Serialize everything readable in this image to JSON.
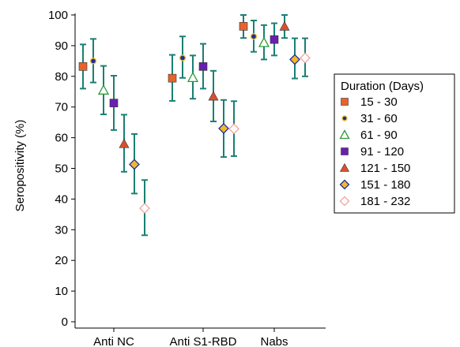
{
  "chart_data": {
    "type": "scatter",
    "subtype": "dot-plot-with-error-bars",
    "ylabel": "Seropositivity (%)",
    "xlabel": "",
    "ylim": [
      0,
      100
    ],
    "yticks": [
      0,
      10,
      20,
      30,
      40,
      50,
      60,
      70,
      80,
      90,
      100
    ],
    "categories": [
      "Anti NC",
      "Anti S1-RBD",
      "Nabs"
    ],
    "grid": false,
    "legend": {
      "title": "Duration (Days)",
      "position": "right"
    },
    "error_bar_color": "#1a7f74",
    "series": [
      {
        "name": "15 - 30",
        "marker": "square",
        "color": "#e8632b",
        "values": [
          83.2,
          79.4,
          96.3
        ],
        "lower": [
          76.0,
          72.0,
          92.5
        ],
        "upper": [
          90.4,
          87.0,
          100.0
        ]
      },
      {
        "name": "31 - 60",
        "marker": "circle",
        "color": "#1c2e9c",
        "values": [
          85.0,
          86.0,
          93.0
        ],
        "lower": [
          78.0,
          79.5,
          88.0
        ],
        "upper": [
          92.2,
          93.0,
          98.2
        ]
      },
      {
        "name": "61 - 90",
        "marker": "triangle-open",
        "color": "#2e9a3b",
        "values": [
          75.5,
          79.6,
          91.0
        ],
        "lower": [
          67.6,
          72.7,
          85.5
        ],
        "upper": [
          83.4,
          86.8,
          96.7
        ]
      },
      {
        "name": "91 - 120",
        "marker": "square",
        "color": "#6a1fb0",
        "values": [
          71.3,
          83.2,
          92.0
        ],
        "lower": [
          62.5,
          76.0,
          86.8
        ],
        "upper": [
          80.2,
          90.6,
          97.3
        ]
      },
      {
        "name": "121 - 150",
        "marker": "triangle",
        "color": "#d9502e",
        "values": [
          58.0,
          73.5,
          96.3
        ],
        "lower": [
          48.9,
          65.3,
          92.5
        ],
        "upper": [
          67.5,
          81.8,
          100.0
        ]
      },
      {
        "name": "151 - 180",
        "marker": "diamond",
        "color": "#f0b82a",
        "values": [
          51.3,
          63.0,
          85.5
        ],
        "lower": [
          41.8,
          53.7,
          79.3
        ],
        "upper": [
          61.2,
          72.3,
          92.4
        ]
      },
      {
        "name": "181 - 232",
        "marker": "diamond-open",
        "color": "#f2a3a0",
        "values": [
          37.0,
          62.9,
          86.0
        ],
        "lower": [
          28.2,
          54.0,
          80.0
        ],
        "upper": [
          46.2,
          71.9,
          92.4
        ]
      }
    ]
  }
}
